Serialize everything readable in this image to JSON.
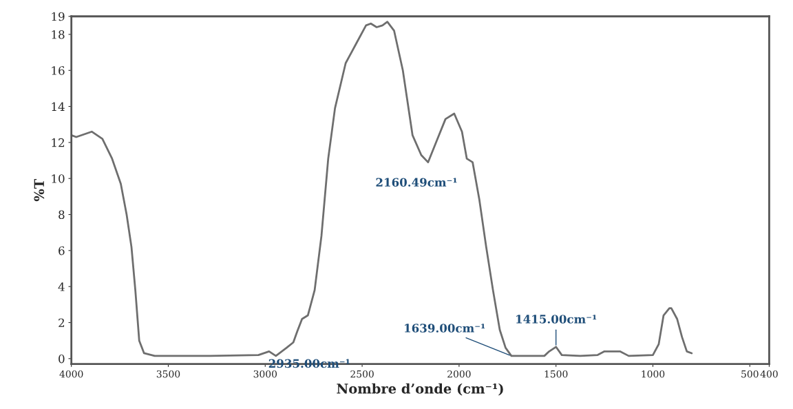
{
  "chart_data": {
    "type": "line",
    "xlabel": "Nombre d’onde (cm⁻¹)",
    "ylabel": "%T",
    "x": [
      4000,
      3975,
      3895,
      3840,
      3790,
      3745,
      3715,
      3690,
      3670,
      3650,
      3625,
      3570,
      3285,
      3035,
      2980,
      2945,
      2890,
      2855,
      2835,
      2810,
      2780,
      2745,
      2710,
      2675,
      2640,
      2585,
      2530,
      2480,
      2455,
      2425,
      2395,
      2370,
      2335,
      2290,
      2240,
      2195,
      2160,
      2115,
      2070,
      2025,
      1985,
      1960,
      1930,
      1895,
      1860,
      1825,
      1790,
      1760,
      1730,
      1560,
      1535,
      1500,
      1470,
      1375,
      1285,
      1250,
      1170,
      1125,
      1000,
      970,
      945,
      915,
      905,
      875,
      850,
      825,
      800
    ],
    "series": [
      {
        "color": "#6e6e6e",
        "values": [
          12.4,
          12.3,
          12.6,
          12.2,
          11.1,
          9.7,
          8.0,
          6.2,
          3.8,
          1.0,
          0.3,
          0.15,
          0.15,
          0.2,
          0.4,
          0.15,
          0.6,
          0.9,
          1.5,
          2.2,
          2.4,
          3.8,
          6.8,
          11.1,
          13.9,
          16.4,
          17.5,
          18.5,
          18.6,
          18.4,
          18.5,
          18.7,
          18.2,
          16.0,
          12.4,
          11.3,
          10.9,
          12.1,
          13.3,
          13.6,
          12.6,
          11.1,
          10.9,
          8.8,
          6.2,
          3.8,
          1.6,
          0.6,
          0.15,
          0.15,
          0.4,
          0.65,
          0.2,
          0.15,
          0.2,
          0.4,
          0.4,
          0.15,
          0.2,
          0.8,
          2.4,
          2.8,
          2.8,
          2.2,
          1.2,
          0.4,
          0.3
        ]
      }
    ],
    "xlim": [
      4000,
      400
    ],
    "xticks": [
      4000,
      3500,
      3000,
      2500,
      2000,
      1500,
      1000,
      500,
      400
    ],
    "ylim": [
      -0.3,
      19
    ],
    "yticks": [
      0,
      2,
      4,
      6,
      8,
      10,
      12,
      14,
      16,
      18,
      19
    ],
    "grid": false,
    "legend": false,
    "marker": "none",
    "line_style": "solid",
    "annotations": [
      {
        "text": "2935.00cm⁻¹",
        "x": 2945,
        "y": 0.15
      },
      {
        "text": "2160.49cm⁻¹",
        "x": 2160.49,
        "y": 10.9
      },
      {
        "text": "1639.00cm⁻¹",
        "x": 1730,
        "y": 0.15
      },
      {
        "text": "1415.00cm⁻¹",
        "x": 1500,
        "y": 0.65
      }
    ]
  }
}
